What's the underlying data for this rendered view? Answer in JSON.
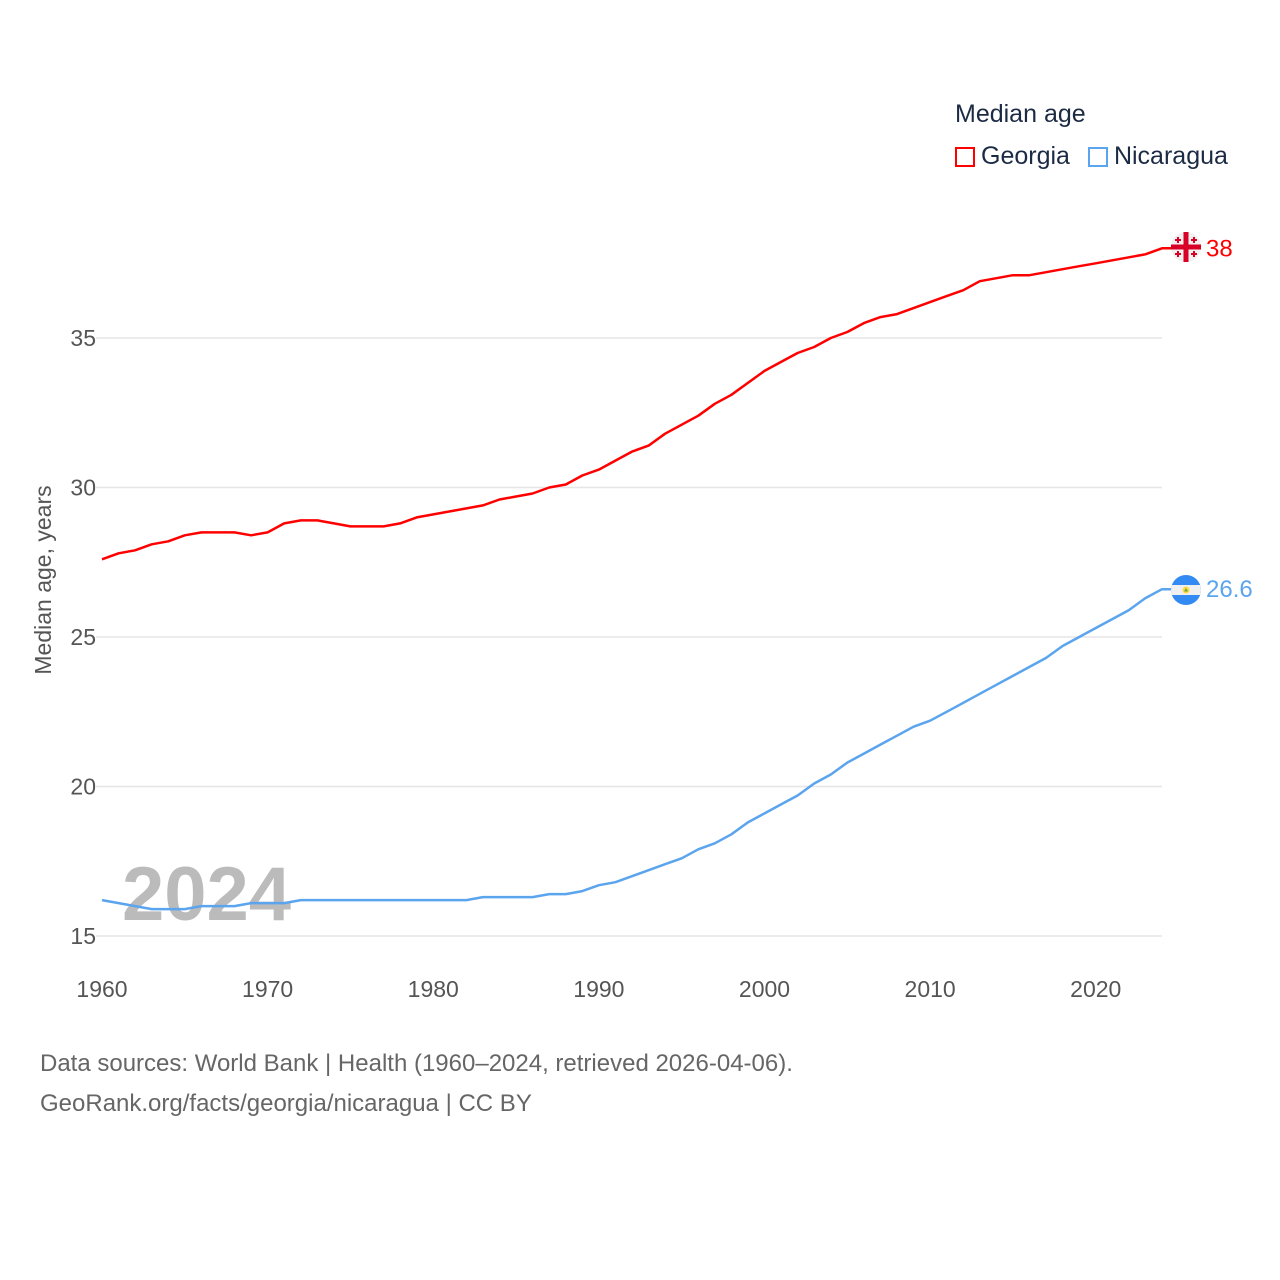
{
  "chart_data": {
    "type": "line",
    "title": "Median age",
    "ylabel": "Median age, years",
    "xlabel": "",
    "xlim": [
      1960,
      2024
    ],
    "ylim": [
      15,
      38.5
    ],
    "x_ticks": [
      1960,
      1970,
      1980,
      1990,
      2000,
      2010,
      2020
    ],
    "y_ticks": [
      15,
      20,
      25,
      30,
      35
    ],
    "grid": true,
    "legend_position": "top-right",
    "year_watermark": "2024",
    "x": [
      1960,
      1961,
      1962,
      1963,
      1964,
      1965,
      1966,
      1967,
      1968,
      1969,
      1970,
      1971,
      1972,
      1973,
      1974,
      1975,
      1976,
      1977,
      1978,
      1979,
      1980,
      1981,
      1982,
      1983,
      1984,
      1985,
      1986,
      1987,
      1988,
      1989,
      1990,
      1991,
      1992,
      1993,
      1994,
      1995,
      1996,
      1997,
      1998,
      1999,
      2000,
      2001,
      2002,
      2003,
      2004,
      2005,
      2006,
      2007,
      2008,
      2009,
      2010,
      2011,
      2012,
      2013,
      2014,
      2015,
      2016,
      2017,
      2018,
      2019,
      2020,
      2021,
      2022,
      2023,
      2024
    ],
    "series": [
      {
        "name": "Georgia",
        "color": "#ff0000",
        "end_label": "38",
        "flag": "georgia-flag",
        "values": [
          27.6,
          27.8,
          27.9,
          28.1,
          28.2,
          28.4,
          28.5,
          28.5,
          28.5,
          28.4,
          28.5,
          28.8,
          28.9,
          28.9,
          28.8,
          28.7,
          28.7,
          28.7,
          28.8,
          29.0,
          29.1,
          29.2,
          29.3,
          29.4,
          29.6,
          29.7,
          29.8,
          30.0,
          30.1,
          30.4,
          30.6,
          30.9,
          31.2,
          31.4,
          31.8,
          32.1,
          32.4,
          32.8,
          33.1,
          33.5,
          33.9,
          34.2,
          34.5,
          34.7,
          35.0,
          35.2,
          35.5,
          35.7,
          35.8,
          36.0,
          36.2,
          36.4,
          36.6,
          36.9,
          37.0,
          37.1,
          37.1,
          37.2,
          37.3,
          37.4,
          37.5,
          37.6,
          37.7,
          37.8,
          38.0
        ]
      },
      {
        "name": "Nicaragua",
        "color": "#5ba4ee",
        "end_label": "26.6",
        "flag": "nicaragua-flag",
        "values": [
          16.2,
          16.1,
          16.0,
          15.9,
          15.9,
          15.9,
          16.0,
          16.0,
          16.0,
          16.1,
          16.1,
          16.1,
          16.2,
          16.2,
          16.2,
          16.2,
          16.2,
          16.2,
          16.2,
          16.2,
          16.2,
          16.2,
          16.2,
          16.3,
          16.3,
          16.3,
          16.3,
          16.4,
          16.4,
          16.5,
          16.7,
          16.8,
          17.0,
          17.2,
          17.4,
          17.6,
          17.9,
          18.1,
          18.4,
          18.8,
          19.1,
          19.4,
          19.7,
          20.1,
          20.4,
          20.8,
          21.1,
          21.4,
          21.7,
          22.0,
          22.2,
          22.5,
          22.8,
          23.1,
          23.4,
          23.7,
          24.0,
          24.3,
          24.7,
          25.0,
          25.3,
          25.6,
          25.9,
          26.3,
          26.6
        ]
      }
    ]
  },
  "footer": {
    "line1": "Data sources: World Bank | Health (1960–2024, retrieved 2026-04-06).",
    "line2": "GeoRank.org/facts/georgia/nicaragua | CC BY"
  }
}
